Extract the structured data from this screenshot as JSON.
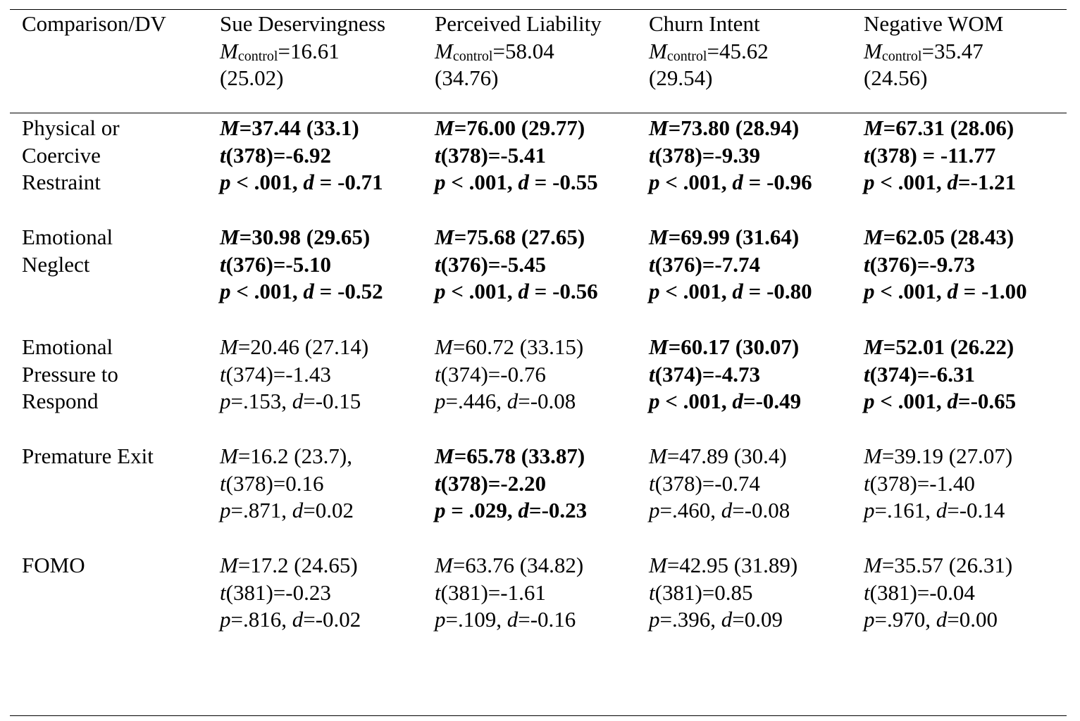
{
  "header": {
    "comparison_label": "Comparison/DV",
    "columns": [
      {
        "name": "Sue Deservingness",
        "m_symbol": "M",
        "m_sub": "control",
        "m_value": "=16.61",
        "sd": "(25.02)"
      },
      {
        "name": "Perceived Liability",
        "m_symbol": "M",
        "m_sub": "control",
        "m_value": "=58.04",
        "sd": "(34.76)"
      },
      {
        "name": "Churn Intent",
        "m_symbol": "M",
        "m_sub": "control",
        "m_value": "=45.62",
        "sd": "(29.54)"
      },
      {
        "name": "Negative WOM",
        "m_symbol": "M",
        "m_sub": "control",
        "m_value": "=35.47",
        "sd": "(24.56)"
      }
    ]
  },
  "rows": [
    {
      "label_lines": [
        "Physical or",
        "Coercive",
        "Restraint"
      ],
      "cells": [
        {
          "bold": true,
          "lines": [
            "M=37.44 (33.1)",
            "t(378)=-6.92",
            "p < .001, d = -0.71"
          ]
        },
        {
          "bold": true,
          "lines": [
            "M=76.00 (29.77)",
            "t(378)=-5.41",
            "p < .001, d = -0.55"
          ]
        },
        {
          "bold": true,
          "lines": [
            "M=73.80 (28.94)",
            "t(378)=-9.39",
            "p < .001, d = -0.96"
          ]
        },
        {
          "bold": true,
          "lines": [
            "M=67.31 (28.06)",
            "t(378) = -11.77",
            "p < .001, d=-1.21"
          ]
        }
      ]
    },
    {
      "label_lines": [
        "Emotional",
        "Neglect"
      ],
      "cells": [
        {
          "bold": true,
          "lines": [
            "M=30.98 (29.65)",
            "t(376)=-5.10",
            "p < .001, d = -0.52"
          ]
        },
        {
          "bold": true,
          "lines": [
            "M=75.68 (27.65)",
            "t(376)=-5.45",
            "p < .001, d = -0.56"
          ]
        },
        {
          "bold": true,
          "lines": [
            "M=69.99 (31.64)",
            "t(376)=-7.74",
            "p < .001, d = -0.80"
          ]
        },
        {
          "bold": true,
          "lines": [
            "M=62.05 (28.43)",
            "t(376)=-9.73",
            "p < .001, d = -1.00"
          ]
        }
      ]
    },
    {
      "label_lines": [
        "Emotional",
        "Pressure to",
        "Respond"
      ],
      "cells": [
        {
          "bold": false,
          "lines": [
            "M=20.46 (27.14)",
            "t(374)=-1.43",
            "p=.153, d=-0.15"
          ]
        },
        {
          "bold": false,
          "lines": [
            "M=60.72 (33.15)",
            "t(374)=-0.76",
            "p=.446, d=-0.08"
          ]
        },
        {
          "bold": true,
          "lines": [
            "M=60.17 (30.07)",
            "t(374)=-4.73",
            "p < .001, d=-0.49"
          ]
        },
        {
          "bold": true,
          "lines": [
            "M=52.01 (26.22)",
            "t(374)=-6.31",
            "p < .001, d=-0.65"
          ]
        }
      ]
    },
    {
      "label_lines": [
        "Premature Exit"
      ],
      "cells": [
        {
          "bold": false,
          "lines": [
            "M=16.2 (23.7),",
            "t(378)=0.16",
            "p=.871, d=0.02"
          ]
        },
        {
          "bold": true,
          "lines": [
            "M=65.78 (33.87)",
            "t(378)=-2.20",
            "p = .029, d=-0.23"
          ]
        },
        {
          "bold": false,
          "lines": [
            "M=47.89 (30.4)",
            "t(378)=-0.74",
            "p=.460, d=-0.08"
          ]
        },
        {
          "bold": false,
          "lines": [
            "M=39.19 (27.07)",
            "t(378)=-1.40",
            "p=.161, d=-0.14"
          ]
        }
      ]
    },
    {
      "label_lines": [
        "FOMO"
      ],
      "cells": [
        {
          "bold": false,
          "lines": [
            "M=17.2 (24.65)",
            "t(381)=-0.23",
            "p=.816, d=-0.02"
          ]
        },
        {
          "bold": false,
          "lines": [
            "M=63.76 (34.82)",
            "t(381)=-1.61",
            "p=.109, d=-0.16"
          ]
        },
        {
          "bold": false,
          "lines": [
            "M=42.95 (31.89)",
            "t(381)=0.85",
            "p=.396, d=0.09"
          ]
        },
        {
          "bold": false,
          "lines": [
            "M=35.57 (26.31)",
            "t(381)=-0.04",
            "p=.970, d=0.00"
          ]
        }
      ]
    }
  ]
}
